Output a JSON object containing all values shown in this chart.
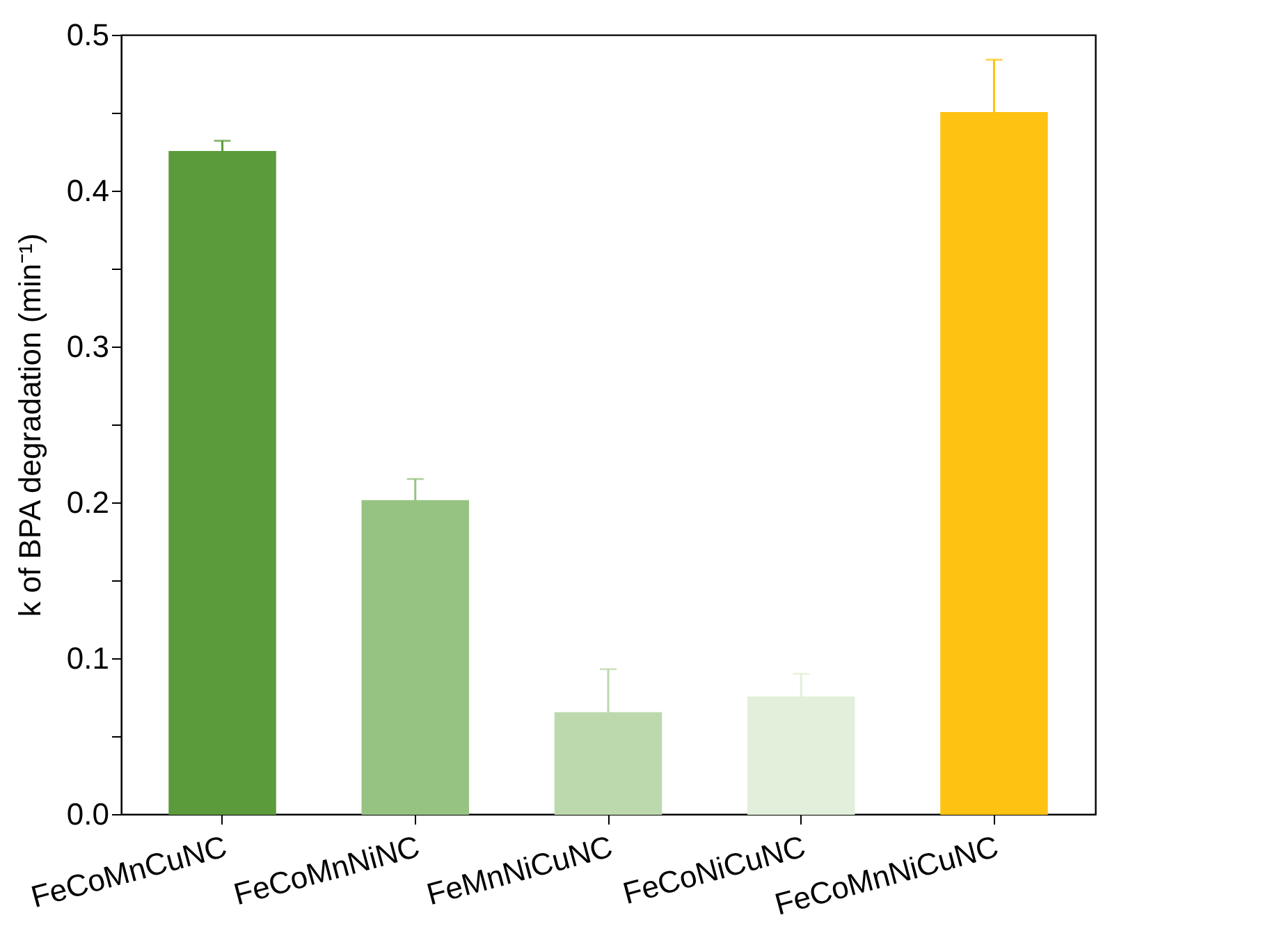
{
  "chart_data": {
    "type": "bar",
    "ylabel": "k of BPA degradation (min⁻¹)",
    "categories": [
      "FeCoMnCuNC",
      "FeCoMnNiNC",
      "FeMnNiCuNC",
      "FeCoNiCuNC",
      "FeCoMnNiCuNC"
    ],
    "values": [
      0.425,
      0.201,
      0.065,
      0.075,
      0.45
    ],
    "errors": [
      0.007,
      0.014,
      0.028,
      0.015,
      0.034
    ],
    "colors": [
      "#5b9b3c",
      "#97c382",
      "#bcd9ae",
      "#e2efda",
      "#fec213"
    ],
    "ylim": [
      0,
      0.5
    ],
    "yticks": [
      {
        "value": 0,
        "label": "0.0"
      },
      {
        "value": 0.05,
        "label": null
      },
      0.1,
      {
        "value": 0.15,
        "label": null
      },
      0.2,
      {
        "value": 0.25,
        "label": null
      },
      0.3,
      {
        "value": 0.35,
        "label": null
      },
      0.4,
      {
        "value": 0.45,
        "label": null
      },
      0.5
    ],
    "grid": false
  }
}
